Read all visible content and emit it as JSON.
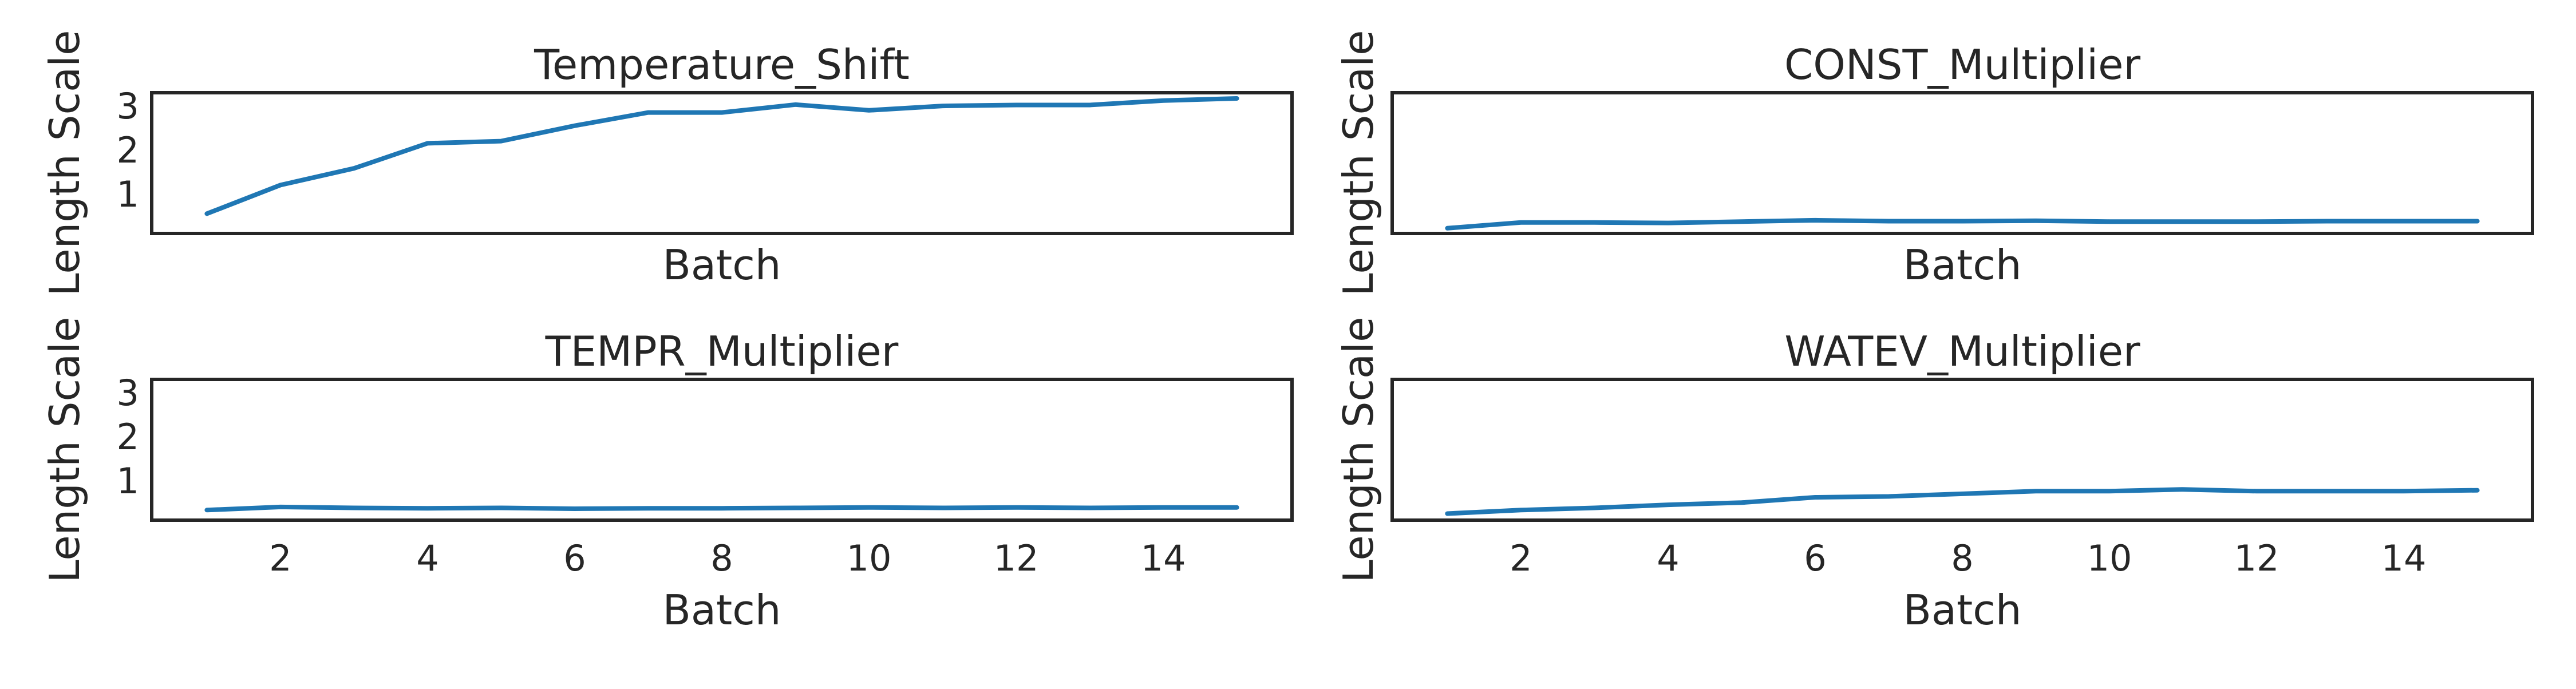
{
  "chart_data": [
    {
      "type": "line",
      "title": "Temperature_Shift",
      "xlabel": "Batch",
      "ylabel": "Length Scale",
      "x": [
        1,
        2,
        3,
        4,
        5,
        6,
        7,
        8,
        9,
        10,
        11,
        12,
        13,
        14,
        15
      ],
      "series": [
        {
          "values": [
            0.55,
            1.2,
            1.58,
            2.15,
            2.2,
            2.55,
            2.85,
            2.85,
            3.03,
            2.9,
            3.0,
            3.02,
            3.02,
            3.12,
            3.17
          ]
        }
      ],
      "xlim": [
        0.25,
        15.75
      ],
      "ylim": [
        0.1,
        3.3
      ],
      "xticks": [
        2,
        4,
        6,
        8,
        10,
        12,
        14
      ],
      "yticks": [
        1,
        2,
        3
      ],
      "show_xticks": false,
      "show_yticks": true,
      "grid": false,
      "color": "#1f77b4"
    },
    {
      "type": "line",
      "title": "CONST_Multiplier",
      "xlabel": "Batch",
      "ylabel": "Length Scale",
      "x": [
        1,
        2,
        3,
        4,
        5,
        6,
        7,
        8,
        9,
        10,
        11,
        12,
        13,
        14,
        15
      ],
      "series": [
        {
          "values": [
            0.22,
            0.35,
            0.35,
            0.34,
            0.37,
            0.4,
            0.38,
            0.38,
            0.39,
            0.37,
            0.37,
            0.37,
            0.38,
            0.38,
            0.38
          ]
        }
      ],
      "xlim": [
        0.25,
        15.75
      ],
      "ylim": [
        0.1,
        3.3
      ],
      "xticks": [
        2,
        4,
        6,
        8,
        10,
        12,
        14
      ],
      "yticks": [
        1,
        2,
        3
      ],
      "show_xticks": false,
      "show_yticks": false,
      "grid": false,
      "color": "#1f77b4"
    },
    {
      "type": "line",
      "title": "TEMPR_Multiplier",
      "xlabel": "Batch",
      "ylabel": "Length Scale",
      "x": [
        1,
        2,
        3,
        4,
        5,
        6,
        7,
        8,
        9,
        10,
        11,
        12,
        13,
        14,
        15
      ],
      "series": [
        {
          "values": [
            0.33,
            0.4,
            0.38,
            0.37,
            0.38,
            0.36,
            0.37,
            0.37,
            0.38,
            0.39,
            0.38,
            0.39,
            0.38,
            0.39,
            0.39
          ]
        }
      ],
      "xlim": [
        0.25,
        15.75
      ],
      "ylim": [
        0.1,
        3.3
      ],
      "xticks": [
        2,
        4,
        6,
        8,
        10,
        12,
        14
      ],
      "yticks": [
        1,
        2,
        3
      ],
      "show_xticks": true,
      "show_yticks": true,
      "grid": false,
      "color": "#1f77b4"
    },
    {
      "type": "line",
      "title": "WATEV_Multiplier",
      "xlabel": "Batch",
      "ylabel": "Length Scale",
      "x": [
        1,
        2,
        3,
        4,
        5,
        6,
        7,
        8,
        9,
        10,
        11,
        12,
        13,
        14,
        15
      ],
      "series": [
        {
          "values": [
            0.25,
            0.33,
            0.38,
            0.45,
            0.5,
            0.62,
            0.64,
            0.7,
            0.76,
            0.76,
            0.8,
            0.76,
            0.76,
            0.76,
            0.78
          ]
        }
      ],
      "xlim": [
        0.25,
        15.75
      ],
      "ylim": [
        0.1,
        3.3
      ],
      "xticks": [
        2,
        4,
        6,
        8,
        10,
        12,
        14
      ],
      "yticks": [
        1,
        2,
        3
      ],
      "show_xticks": true,
      "show_yticks": false,
      "grid": false,
      "color": "#1f77b4"
    }
  ]
}
